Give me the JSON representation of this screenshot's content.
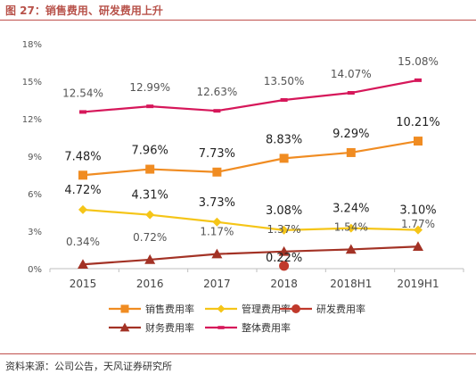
{
  "header": {
    "title": "图 27：销售费用、研发费用上升"
  },
  "footer": {
    "source": "资料来源：公司公告，天风证券研究所"
  },
  "chart_data": {
    "type": "line",
    "categories": [
      "2015",
      "2016",
      "2017",
      "2018",
      "2018H1",
      "2019H1"
    ],
    "y_tick_labels": [
      "0%",
      "3%",
      "6%",
      "9%",
      "12%",
      "15%",
      "18%"
    ],
    "ylim": [
      0,
      18
    ],
    "grid": false,
    "legend_position": "bottom",
    "series": [
      {
        "name": "销售费用率",
        "color": "#f08c22",
        "marker": "square",
        "values": [
          7.48,
          7.96,
          7.73,
          8.83,
          9.29,
          10.21
        ],
        "labels": [
          "7.48%",
          "7.96%",
          "7.73%",
          "8.83%",
          "9.29%",
          "10.21%"
        ]
      },
      {
        "name": "管理费用率",
        "color": "#f5c518",
        "marker": "diamond",
        "values": [
          4.72,
          4.31,
          3.73,
          3.08,
          3.24,
          3.1
        ],
        "labels": [
          "4.72%",
          "4.31%",
          "3.73%",
          "3.08%",
          "3.24%",
          "3.10%"
        ]
      },
      {
        "name": "研发费用率",
        "color": "#c0392b",
        "marker": "circle",
        "values": [
          null,
          null,
          null,
          0.22,
          null,
          null
        ],
        "labels": [
          null,
          null,
          null,
          "0.22%",
          null,
          null
        ]
      },
      {
        "name": "财务费用率",
        "color": "#a33225",
        "marker": "triangle",
        "values": [
          0.34,
          0.72,
          1.17,
          1.37,
          1.54,
          1.77
        ],
        "labels": [
          "0.34%",
          "0.72%",
          "1.17%",
          "1.37%",
          "1.54%",
          "1.77%"
        ]
      },
      {
        "name": "整体费用率",
        "color": "#d6175a",
        "marker": "dash",
        "values": [
          12.54,
          12.99,
          12.63,
          13.5,
          14.07,
          15.08
        ],
        "labels": [
          "12.54%",
          "12.99%",
          "12.63%",
          "13.50%",
          "14.07%",
          "15.08%"
        ]
      }
    ]
  }
}
